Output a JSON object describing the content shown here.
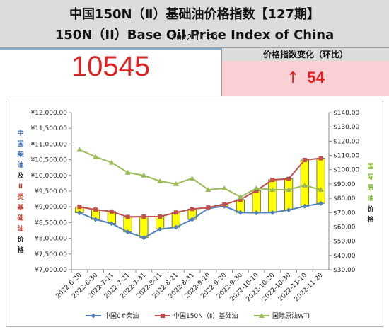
{
  "header": {
    "title_cn": "中国150N（Ⅱ）基础油价格指数【127期】",
    "title_en": "150N（II）Base Oil Price Index of China"
  },
  "index": {
    "value": "10545",
    "date": "2022-11-20"
  },
  "change": {
    "label": "价格指数变化（环比）",
    "arrow": "↑",
    "value": "54"
  },
  "chart_data": {
    "type": "line",
    "categories": [
      "2022-6-20",
      "2022-6-30",
      "2022-7-11",
      "2022-7-21",
      "2022-7-31",
      "2022-8-11",
      "2022-8-21",
      "2022-8-31",
      "2022-9-10",
      "2022-9-20",
      "2022-9-30",
      "2022-10-10",
      "2022-10-20",
      "2022-10-30",
      "2022-11-10",
      "2022-11-20"
    ],
    "y_left": {
      "min": 7000,
      "max": 12000,
      "step": 500,
      "tick_labels": [
        "¥7,000.00",
        "¥7,500.00",
        "¥8,000.00",
        "¥8,500.00",
        "¥9,000.00",
        "¥9,500.00",
        "¥10,000.00",
        "¥10,500.00",
        "¥11,000.00",
        "¥11,500.00",
        "¥12,000.00"
      ],
      "label_chars": [
        {
          "text": "中",
          "color": "#3a6db4"
        },
        {
          "text": "国",
          "color": "#3a6db4"
        },
        {
          "text": "柴",
          "color": "#3a6db4"
        },
        {
          "text": "油",
          "color": "#3a6db4"
        },
        {
          "text": "及",
          "color": "#222222"
        },
        {
          "text": "Ⅱ",
          "color": "#c0392b"
        },
        {
          "text": "类",
          "color": "#c0392b"
        },
        {
          "text": "基",
          "color": "#c0392b"
        },
        {
          "text": "础",
          "color": "#c0392b"
        },
        {
          "text": "油",
          "color": "#c0392b"
        },
        {
          "text": "价",
          "color": "#222222"
        },
        {
          "text": "格",
          "color": "#222222"
        }
      ]
    },
    "y_right": {
      "min": 30,
      "max": 140,
      "step": 10,
      "tick_labels": [
        "$30.00",
        "$40.00",
        "$50.00",
        "$60.00",
        "$70.00",
        "$80.00",
        "$90.00",
        "$100.00",
        "$110.00",
        "$120.00",
        "$130.00",
        "$140.00"
      ],
      "label_chars": [
        {
          "text": "国",
          "color": "#7fae2b"
        },
        {
          "text": "际",
          "color": "#7fae2b"
        },
        {
          "text": "原",
          "color": "#7fae2b"
        },
        {
          "text": "油",
          "color": "#7fae2b"
        },
        {
          "text": "价",
          "color": "#222222"
        },
        {
          "text": "格",
          "color": "#222222"
        }
      ]
    },
    "series": [
      {
        "name": "中国0#柴油",
        "axis": "left",
        "color": "#4f81bd",
        "values": [
          8810,
          8600,
          8470,
          8200,
          8020,
          8290,
          8350,
          8600,
          8950,
          9020,
          8820,
          8810,
          8820,
          8900,
          9020,
          9110
        ]
      },
      {
        "name": "中国150N（Ⅱ）基础油",
        "axis": "left",
        "color": "#c0504d",
        "values": [
          9000,
          8910,
          8850,
          8680,
          8690,
          8690,
          8820,
          8930,
          8980,
          9080,
          9230,
          9520,
          9860,
          9890,
          10491,
          10545
        ]
      },
      {
        "name": "国际原油WTI",
        "axis": "right",
        "color": "#9bbb59",
        "values": [
          114,
          109,
          105,
          98,
          96,
          92,
          90,
          94,
          86,
          87,
          81,
          87,
          86,
          86,
          89,
          86
        ]
      }
    ],
    "bars": {
      "from_series": 0,
      "to_series": 1,
      "fill": "#ffff00",
      "stroke": "#555555"
    },
    "legend_position": "bottom",
    "grid": false
  }
}
